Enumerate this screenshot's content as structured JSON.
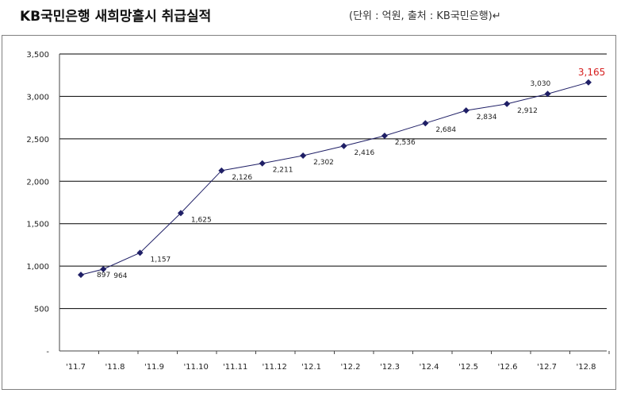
{
  "header": {
    "title": "KB국민은행 새희망홀시 취급실적",
    "unit_note": "(단위 : 억원, 출처 : KB국민은행)↵"
  },
  "chart_data": {
    "type": "line",
    "title": "KB국민은행 새희망홀시 취급실적",
    "xlabel": "",
    "ylabel": "",
    "categories": [
      "'11.7",
      "'11.8",
      "'11.9",
      "'11.10",
      "'11.11",
      "'11.12",
      "'12.1",
      "'12.2",
      "'12.3",
      "'12.4",
      "'12.5",
      "'12.6",
      "'12.7",
      "'12.8"
    ],
    "y_tick_labels": [
      "-",
      "500",
      "1,000",
      "1,500",
      "2,000",
      "2,500",
      "3,000",
      "3,500"
    ],
    "ylim": [
      0,
      3500
    ],
    "grid": true,
    "legend": "none",
    "series_color": "#1f1f66",
    "highlight_color": "#d62020",
    "points": [
      {
        "x": 0.0,
        "y": 897,
        "label": "897"
      },
      {
        "x": 0.55,
        "y": 964,
        "label": "964"
      },
      {
        "x": 1.45,
        "y": 1157,
        "label": "1,157"
      },
      {
        "x": 2.45,
        "y": 1625,
        "label": "1,625"
      },
      {
        "x": 3.45,
        "y": 2126,
        "label": "2,126"
      },
      {
        "x": 4.45,
        "y": 2211,
        "label": "2,211"
      },
      {
        "x": 5.45,
        "y": 2302,
        "label": "2,302"
      },
      {
        "x": 6.45,
        "y": 2416,
        "label": "2,416"
      },
      {
        "x": 7.45,
        "y": 2536,
        "label": "2,536"
      },
      {
        "x": 8.45,
        "y": 2684,
        "label": "2,684"
      },
      {
        "x": 9.45,
        "y": 2834,
        "label": "2,834"
      },
      {
        "x": 10.45,
        "y": 2912,
        "label": "2,912"
      },
      {
        "x": 11.45,
        "y": 3030,
        "label": "3,030"
      },
      {
        "x": 12.45,
        "y": 3165,
        "label": "3,165",
        "highlight": true
      }
    ]
  }
}
